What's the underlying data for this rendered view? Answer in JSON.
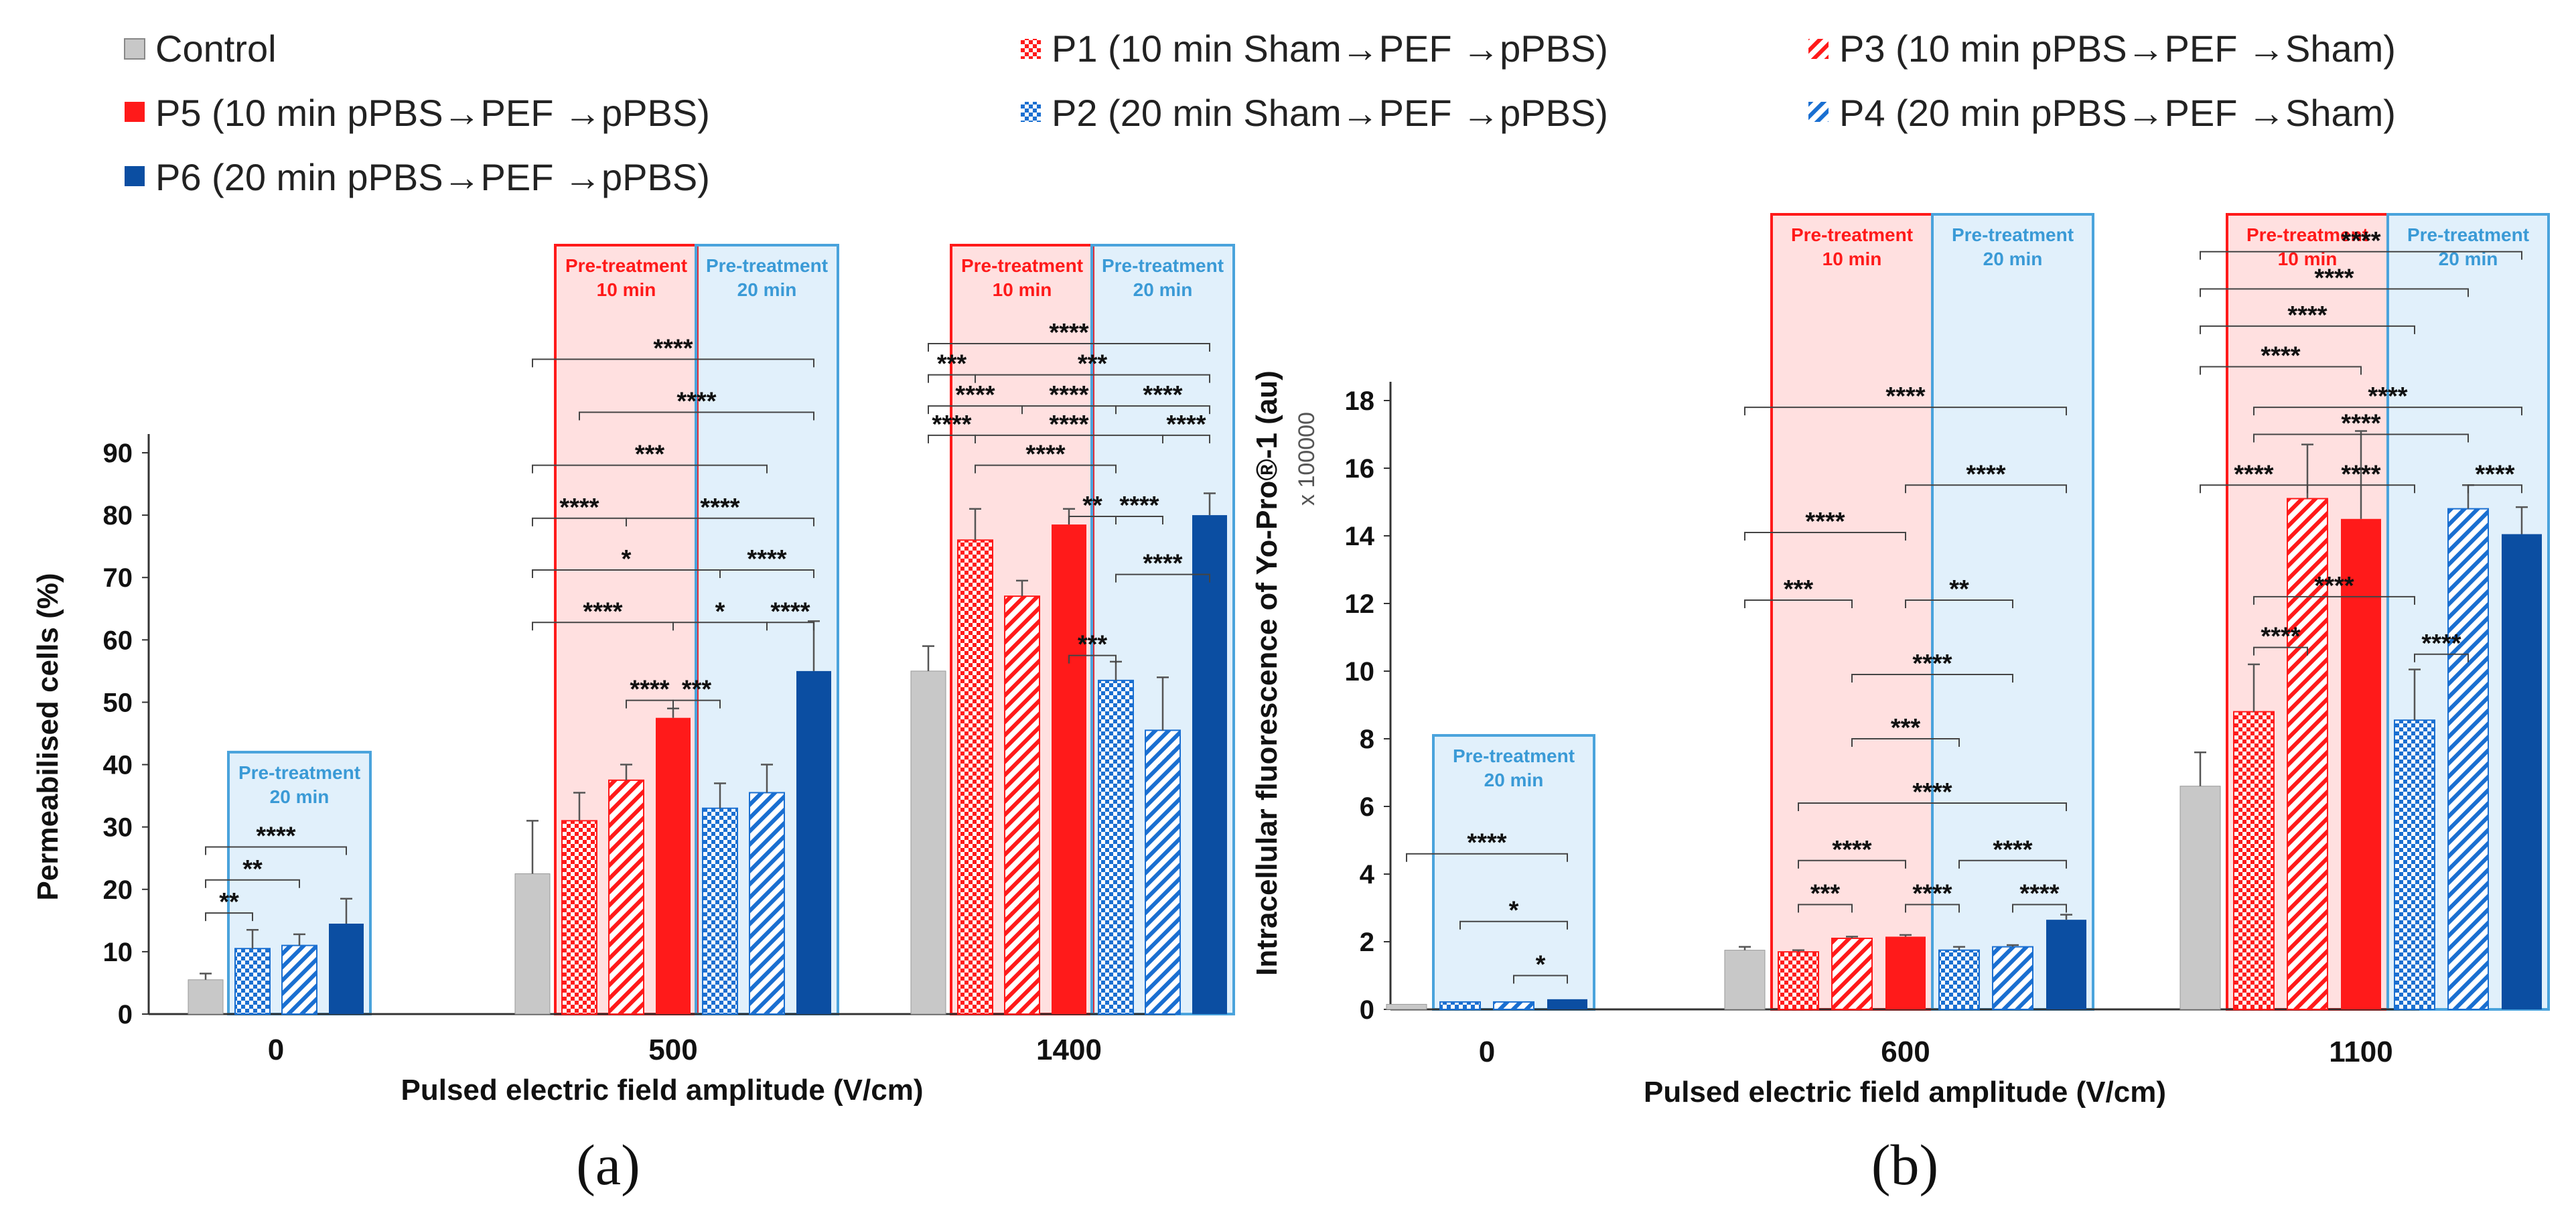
{
  "legend": [
    {
      "key": "control",
      "label": "Control",
      "color": "#c8c8c8",
      "pattern": "solid"
    },
    {
      "key": "p5",
      "label": "P5 (10 min pPBS→PEF →pPBS)",
      "color": "#ff1a1a",
      "pattern": "solid"
    },
    {
      "key": "p6",
      "label": "P6 (20 min pPBS→PEF →pPBS)",
      "color": "#0b4ea2",
      "pattern": "solid"
    },
    {
      "key": "p1",
      "label": "P1 (10 min Sham→PEF →pPBS)",
      "color": "#ff1a1a",
      "pattern": "check"
    },
    {
      "key": "p2",
      "label": "P2 (20 min Sham→PEF →pPBS)",
      "color": "#1a6fd1",
      "pattern": "check"
    },
    {
      "key": "p3",
      "label": "P3 (10 min pPBS→PEF →Sham)",
      "color": "#ff1a1a",
      "pattern": "diag"
    },
    {
      "key": "p4",
      "label": "P4 (20 min pPBS→PEF →Sham)",
      "color": "#1a6fd1",
      "pattern": "diag"
    }
  ],
  "panels": {
    "a": {
      "label": "(a)"
    },
    "b": {
      "label": "(b)"
    }
  },
  "box_labels": {
    "pre10_line1": "Pre-treatment",
    "pre10_line2": "10 min",
    "pre20_line1": "Pre-treatment",
    "pre20_line2": "20 min"
  },
  "chart_data": [
    {
      "type": "bar",
      "panel": "(a)",
      "xlabel": "Pulsed electric field amplitude (V/cm)",
      "ylabel": "Permeabilised cells (%)",
      "ylim": [
        0,
        90
      ],
      "yticks": [
        0,
        10,
        20,
        30,
        40,
        50,
        60,
        70,
        80,
        90
      ],
      "categories": [
        "0",
        "500",
        "1400"
      ],
      "groups": [
        {
          "category": "0",
          "bars": [
            {
              "key": "control",
              "value": 5.5,
              "err": 1.0
            },
            {
              "key": "p2",
              "value": 10.5,
              "err": 3.0
            },
            {
              "key": "p4",
              "value": 11.0,
              "err": 1.8
            },
            {
              "key": "p6",
              "value": 14.5,
              "err": 4.0
            }
          ]
        },
        {
          "category": "500",
          "bars": [
            {
              "key": "control",
              "value": 22.5,
              "err": 8.5
            },
            {
              "key": "p1",
              "value": 31.0,
              "err": 4.5
            },
            {
              "key": "p3",
              "value": 37.5,
              "err": 2.5
            },
            {
              "key": "p5",
              "value": 47.5,
              "err": 1.5
            },
            {
              "key": "p2",
              "value": 33.0,
              "err": 4.0
            },
            {
              "key": "p4",
              "value": 35.5,
              "err": 4.5
            },
            {
              "key": "p6",
              "value": 55.0,
              "err": 8.0
            }
          ]
        },
        {
          "category": "1400",
          "bars": [
            {
              "key": "control",
              "value": 55.0,
              "err": 4.0
            },
            {
              "key": "p1",
              "value": 76.0,
              "err": 5.0
            },
            {
              "key": "p3",
              "value": 67.0,
              "err": 2.5
            },
            {
              "key": "p5",
              "value": 78.5,
              "err": 2.5
            },
            {
              "key": "p2",
              "value": 53.5,
              "err": 3.0
            },
            {
              "key": "p4",
              "value": 45.5,
              "err": 8.5
            },
            {
              "key": "p6",
              "value": 80.0,
              "err": 3.5
            }
          ]
        }
      ],
      "boxes": [
        {
          "category": "0",
          "kind": "pre20",
          "bars": [
            1,
            3
          ]
        },
        {
          "category": "500",
          "kind": "pre10",
          "bars": [
            1,
            3
          ]
        },
        {
          "category": "500",
          "kind": "pre20",
          "bars": [
            4,
            6
          ]
        },
        {
          "category": "1400",
          "kind": "pre10",
          "bars": [
            1,
            3
          ]
        },
        {
          "category": "1400",
          "kind": "pre20",
          "bars": [
            4,
            6
          ]
        }
      ],
      "significance": [
        {
          "category": "0",
          "from": 0,
          "to": 1,
          "label": "**",
          "level": 16.2
        },
        {
          "category": "0",
          "from": 0,
          "to": 2,
          "label": "**",
          "level": 21.5
        },
        {
          "category": "0",
          "from": 0,
          "to": 3,
          "label": "****",
          "level": 26.8
        },
        {
          "category": "500",
          "from": 2,
          "to": 3,
          "label": "****",
          "level": 50.3
        },
        {
          "category": "500",
          "from": 3,
          "to": 4,
          "label": "***",
          "level": 50.3
        },
        {
          "category": "500",
          "from": 0,
          "to": 3,
          "label": "****",
          "level": 62.8
        },
        {
          "category": "500",
          "from": 3,
          "to": 5,
          "label": "*",
          "level": 62.8
        },
        {
          "category": "500",
          "from": 5,
          "to": 6,
          "label": "****",
          "level": 62.8
        },
        {
          "category": "500",
          "from": 0,
          "to": 4,
          "label": "*",
          "level": 71.2
        },
        {
          "category": "500",
          "from": 4,
          "to": 6,
          "label": "****",
          "level": 71.2
        },
        {
          "category": "500",
          "from": 0,
          "to": 2,
          "label": "****",
          "level": 79.5
        },
        {
          "category": "500",
          "from": 2,
          "to": 6,
          "label": "****",
          "level": 79.5
        },
        {
          "category": "500",
          "from": 0,
          "to": 5,
          "label": "***",
          "level": 88.0
        },
        {
          "category": "500",
          "from": 1,
          "to": 6,
          "label": "****",
          "level": 96.5
        },
        {
          "category": "500",
          "from": 0,
          "to": 6,
          "label": "****",
          "level": 105.0
        },
        {
          "category": "1400",
          "from": 3,
          "to": 4,
          "label": "***",
          "level": 57.5
        },
        {
          "category": "1400",
          "from": 4,
          "to": 6,
          "label": "****",
          "level": 70.5
        },
        {
          "category": "1400",
          "from": 3,
          "to": 4,
          "label": "**",
          "level": 79.8
        },
        {
          "category": "1400",
          "from": 4,
          "to": 5,
          "label": "****",
          "level": 79.8
        },
        {
          "category": "1400",
          "from": 1,
          "to": 4,
          "label": "****",
          "level": 88.0
        },
        {
          "category": "1400",
          "from": 0,
          "to": 1,
          "label": "****",
          "level": 92.8
        },
        {
          "category": "1400",
          "from": 1,
          "to": 5,
          "label": "****",
          "level": 92.8
        },
        {
          "category": "1400",
          "from": 5,
          "to": 6,
          "label": "****",
          "level": 92.8
        },
        {
          "category": "1400",
          "from": 0,
          "to": 2,
          "label": "****",
          "level": 97.5
        },
        {
          "category": "1400",
          "from": 2,
          "to": 4,
          "label": "****",
          "level": 97.5
        },
        {
          "category": "1400",
          "from": 4,
          "to": 6,
          "label": "****",
          "level": 97.5
        },
        {
          "category": "1400",
          "from": 0,
          "to": 1,
          "label": "***",
          "level": 102.5
        },
        {
          "category": "1400",
          "from": 1,
          "to": 6,
          "label": "***",
          "level": 102.5
        },
        {
          "category": "1400",
          "from": 0,
          "to": 6,
          "label": "****",
          "level": 107.5
        }
      ]
    },
    {
      "type": "bar",
      "panel": "(b)",
      "xlabel": "Pulsed electric field amplitude (V/cm)",
      "ylabel": "Intracellular fluorescence of Yo-Pro®-1 (au)",
      "ylabel_multiplier": "x 100000",
      "ylim": [
        0,
        19
      ],
      "yticks": [
        0,
        2,
        4,
        6,
        8,
        10,
        12,
        14,
        16,
        18
      ],
      "categories": [
        "0",
        "600",
        "1100"
      ],
      "groups": [
        {
          "category": "0",
          "bars": [
            {
              "key": "control",
              "value": 0.15,
              "err": 0
            },
            {
              "key": "p2",
              "value": 0.22,
              "err": 0
            },
            {
              "key": "p4",
              "value": 0.22,
              "err": 0
            },
            {
              "key": "p6",
              "value": 0.3,
              "err": 0
            }
          ]
        },
        {
          "category": "600",
          "bars": [
            {
              "key": "control",
              "value": 1.75,
              "err": 0.1
            },
            {
              "key": "p1",
              "value": 1.7,
              "err": 0.05
            },
            {
              "key": "p3",
              "value": 2.1,
              "err": 0.05
            },
            {
              "key": "p5",
              "value": 2.15,
              "err": 0.05
            },
            {
              "key": "p2",
              "value": 1.75,
              "err": 0.1
            },
            {
              "key": "p4",
              "value": 1.85,
              "err": 0.05
            },
            {
              "key": "p6",
              "value": 2.65,
              "err": 0.15
            }
          ]
        },
        {
          "category": "1100",
          "bars": [
            {
              "key": "control",
              "value": 6.6,
              "err": 1.0
            },
            {
              "key": "p1",
              "value": 8.8,
              "err": 1.4
            },
            {
              "key": "p3",
              "value": 15.1,
              "err": 1.6
            },
            {
              "key": "p5",
              "value": 14.5,
              "err": 2.6
            },
            {
              "key": "p2",
              "value": 8.55,
              "err": 1.5
            },
            {
              "key": "p4",
              "value": 14.8,
              "err": 0.7
            },
            {
              "key": "p6",
              "value": 14.05,
              "err": 0.8
            }
          ]
        }
      ],
      "boxes": [
        {
          "category": "0",
          "kind": "pre20",
          "bars": [
            1,
            3
          ]
        },
        {
          "category": "600",
          "kind": "pre10",
          "bars": [
            1,
            3
          ]
        },
        {
          "category": "600",
          "kind": "pre20",
          "bars": [
            4,
            6
          ]
        },
        {
          "category": "1100",
          "kind": "pre10",
          "bars": [
            1,
            3
          ]
        },
        {
          "category": "1100",
          "kind": "pre20",
          "bars": [
            4,
            6
          ]
        }
      ],
      "significance": [
        {
          "category": "0",
          "from": 2,
          "to": 3,
          "label": "*",
          "level": 1.0
        },
        {
          "category": "0",
          "from": 1,
          "to": 3,
          "label": "*",
          "level": 2.6
        },
        {
          "category": "0",
          "from": 0,
          "to": 3,
          "label": "****",
          "level": 4.6
        },
        {
          "category": "600",
          "from": 1,
          "to": 2,
          "label": "***",
          "level": 3.1
        },
        {
          "category": "600",
          "from": 3,
          "to": 4,
          "label": "****",
          "level": 3.1
        },
        {
          "category": "600",
          "from": 5,
          "to": 6,
          "label": "****",
          "level": 3.1
        },
        {
          "category": "600",
          "from": 1,
          "to": 3,
          "label": "****",
          "level": 4.4
        },
        {
          "category": "600",
          "from": 4,
          "to": 6,
          "label": "****",
          "level": 4.4
        },
        {
          "category": "600",
          "from": 1,
          "to": 6,
          "label": "****",
          "level": 6.1
        },
        {
          "category": "600",
          "from": 2,
          "to": 4,
          "label": "***",
          "level": 8.0
        },
        {
          "category": "600",
          "from": 2,
          "to": 5,
          "label": "****",
          "level": 9.9
        },
        {
          "category": "600",
          "from": 0,
          "to": 2,
          "label": "***",
          "level": 12.1
        },
        {
          "category": "600",
          "from": 3,
          "to": 5,
          "label": "**",
          "level": 12.1
        },
        {
          "category": "600",
          "from": 0,
          "to": 3,
          "label": "****",
          "level": 14.1
        },
        {
          "category": "600",
          "from": 3,
          "to": 6,
          "label": "****",
          "level": 15.5
        },
        {
          "category": "600",
          "from": 0,
          "to": 6,
          "label": "****",
          "level": 17.8
        },
        {
          "category": "1100",
          "from": 1,
          "to": 2,
          "label": "****",
          "level": 10.7
        },
        {
          "category": "1100",
          "from": 4,
          "to": 5,
          "label": "****",
          "level": 10.5
        },
        {
          "category": "1100",
          "from": 1,
          "to": 4,
          "label": "****",
          "level": 12.2
        },
        {
          "category": "1100",
          "from": 0,
          "to": 2,
          "label": "****",
          "level": 15.5
        },
        {
          "category": "1100",
          "from": 2,
          "to": 4,
          "label": "****",
          "level": 15.5
        },
        {
          "category": "1100",
          "from": 5,
          "to": 6,
          "label": "****",
          "level": 15.5
        },
        {
          "category": "1100",
          "from": 1,
          "to": 5,
          "label": "****",
          "level": 17.0
        },
        {
          "category": "1100",
          "from": 1,
          "to": 6,
          "label": "****",
          "level": 17.8
        },
        {
          "category": "1100",
          "from": 0,
          "to": 3,
          "label": "****",
          "level": 19.0
        },
        {
          "category": "1100",
          "from": 0,
          "to": 4,
          "label": "****",
          "level": 20.2
        },
        {
          "category": "1100",
          "from": 0,
          "to": 5,
          "label": "****",
          "level": 21.3
        },
        {
          "category": "1100",
          "from": 0,
          "to": 6,
          "label": "****",
          "level": 22.4
        }
      ]
    }
  ]
}
